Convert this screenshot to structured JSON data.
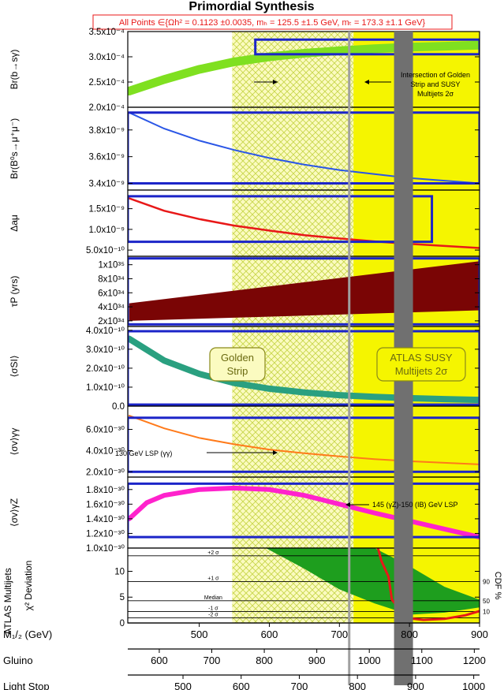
{
  "title": "Primordial Synthesis",
  "constraint_text": "All Points ∈{Ωh² = 0.1123 ±0.0035, mₕ = 125.5 ±1.5 GeV, mₜ = 173.3 ±1.1 GeV}",
  "colors": {
    "yellow": "#f5f500",
    "hatch": "#c8d64a",
    "box": "#1b24c8",
    "grid": "#000000",
    "band_gray": "#707070",
    "line_gray": "#a0a0a0"
  },
  "regions": {
    "golden_strip": {
      "label_line1": "Golden",
      "label_line2": "Strip",
      "m12_range": [
        547,
        720
      ]
    },
    "atlas": {
      "label_line1": "ATLAS SUSY",
      "label_line2": "Multijets 2σ",
      "m12_min": 720
    },
    "gray_band_m12": [
      778,
      805
    ],
    "gray_line_m12": 714
  },
  "annotations": {
    "intersection": [
      "Intersection of Golden",
      "Strip and SUSY",
      "Multijets 2σ"
    ],
    "lsp130": "130 GeV LSP (γγ)",
    "lsp145": "145 (γZ)-150 (IB) GeV LSP"
  },
  "chart_data": [
    {
      "type": "line",
      "ylabel": "Br(b→sγ)",
      "ticks": [
        {
          "v": 2.0,
          "label": "2.0x10⁻⁴"
        },
        {
          "v": 2.5,
          "label": "2.5x10⁻⁴"
        },
        {
          "v": 3.0,
          "label": "3.0x10⁻⁴"
        },
        {
          "v": 3.5,
          "label": "3.5x10⁻⁴"
        }
      ],
      "ylim": [
        2.0,
        3.5
      ],
      "scale": "1e-4",
      "x": [
        400,
        450,
        500,
        550,
        600,
        650,
        700,
        750,
        800,
        850,
        900
      ],
      "y": [
        2.32,
        2.55,
        2.75,
        2.9,
        3.0,
        3.07,
        3.12,
        3.16,
        3.19,
        3.21,
        3.23
      ],
      "line_width": 11,
      "color": "#7fe020",
      "box": {
        "x": [
          580,
          900
        ],
        "y": [
          3.05,
          3.34
        ]
      }
    },
    {
      "type": "line",
      "ylabel": "Br(B⁰s→μ⁺μ⁻)",
      "ticks": [
        {
          "v": 3.4,
          "label": "3.4x10⁻⁹"
        },
        {
          "v": 3.6,
          "label": "3.6x10⁻⁹"
        },
        {
          "v": 3.8,
          "label": "3.8x10⁻⁹"
        }
      ],
      "ylim": [
        3.35,
        3.97
      ],
      "scale": "1e-9",
      "x": [
        400,
        450,
        500,
        550,
        600,
        650,
        700,
        750,
        800,
        850,
        900
      ],
      "y": [
        3.93,
        3.81,
        3.72,
        3.65,
        3.59,
        3.54,
        3.5,
        3.47,
        3.44,
        3.42,
        3.4
      ],
      "line_width": 2,
      "color": "#2a56e6",
      "box": {
        "x": [
          398,
          900
        ],
        "y": [
          3.4,
          3.93
        ]
      }
    },
    {
      "type": "line",
      "ylabel": "Δaμ",
      "ticks": [
        {
          "v": 0.5,
          "label": "5.0x10⁻¹⁰"
        },
        {
          "v": 1.0,
          "label": "1.0x10⁻⁹"
        },
        {
          "v": 1.5,
          "label": "1.5x10⁻⁹"
        }
      ],
      "ylim": [
        0.35,
        1.95
      ],
      "scale": "1e-9",
      "x": [
        400,
        450,
        500,
        550,
        600,
        650,
        700,
        750,
        800,
        850,
        900
      ],
      "y": [
        1.75,
        1.45,
        1.25,
        1.09,
        0.97,
        0.86,
        0.78,
        0.71,
        0.65,
        0.6,
        0.55
      ],
      "line_width": 2.5,
      "color": "#e81818",
      "box": {
        "x": [
          398,
          832
        ],
        "y": [
          0.7,
          1.8
        ]
      }
    },
    {
      "type": "area",
      "ylabel": "τP (yrs)",
      "ticks": [
        {
          "v": 2,
          "label": "2x10³⁴"
        },
        {
          "v": 4,
          "label": "4x10³⁴"
        },
        {
          "v": 6,
          "label": "6x10³⁴"
        },
        {
          "v": 8,
          "label": "8x10³⁴"
        },
        {
          "v": 10,
          "label": "1x10³⁵"
        }
      ],
      "ylim": [
        1.2,
        11.2
      ],
      "scale": "1e34",
      "x": [
        400,
        900
      ],
      "upper": [
        4.5,
        10.5
      ],
      "lower": [
        2.0,
        3.5
      ],
      "color": "#7a0505",
      "box": {
        "x": [
          398,
          900
        ],
        "y": [
          1.5,
          10.9
        ]
      }
    },
    {
      "type": "line",
      "ylabel": "⟨σSI⟩",
      "ticks": [
        {
          "v": 0.0,
          "label": "0.0"
        },
        {
          "v": 1.0,
          "label": "1.0x10⁻¹⁰"
        },
        {
          "v": 2.0,
          "label": "2.0x10⁻¹⁰"
        },
        {
          "v": 3.0,
          "label": "3.0x10⁻¹⁰"
        },
        {
          "v": 4.0,
          "label": "4.0x10⁻¹⁰"
        }
      ],
      "ylim": [
        0,
        4.2
      ],
      "scale": "1e-10",
      "x": [
        400,
        450,
        500,
        550,
        600,
        650,
        700,
        750,
        800,
        850,
        900
      ],
      "y": [
        3.55,
        2.4,
        1.7,
        1.22,
        0.92,
        0.72,
        0.58,
        0.49,
        0.42,
        0.37,
        0.33
      ],
      "line_width": 8,
      "color": "#2aa080",
      "box": {
        "x": [
          398,
          900
        ],
        "y": [
          0.08,
          3.95
        ]
      }
    },
    {
      "type": "line",
      "ylabel": "⟨σv⟩γγ",
      "ticks": [
        {
          "v": 2,
          "label": "2.0x10⁻³⁰"
        },
        {
          "v": 4,
          "label": "4.0x10⁻³⁰"
        },
        {
          "v": 6,
          "label": "6.0x10⁻³⁰"
        }
      ],
      "ylim": [
        1.5,
        8.2
      ],
      "scale": "1e-30",
      "x": [
        400,
        450,
        500,
        550,
        600,
        650,
        700,
        750,
        800,
        850,
        900
      ],
      "y": [
        7.3,
        6.1,
        5.2,
        4.6,
        4.1,
        3.75,
        3.45,
        3.2,
        3.0,
        2.85,
        2.7
      ],
      "line_width": 2,
      "color": "#ff7a1a",
      "box": {
        "x": [
          398,
          900
        ],
        "y": [
          2.0,
          7.1
        ]
      }
    },
    {
      "type": "line",
      "ylabel": "⟨σv⟩γZ",
      "ticks": [
        {
          "v": 1.0,
          "label": "1.0x10⁻³⁰"
        },
        {
          "v": 1.2,
          "label": "1.2x10⁻³⁰"
        },
        {
          "v": 1.4,
          "label": "1.4x10⁻³⁰"
        },
        {
          "v": 1.6,
          "label": "1.6x10⁻³⁰"
        },
        {
          "v": 1.8,
          "label": "1.8x10⁻³⁰"
        }
      ],
      "ylim": [
        1.0,
        1.97
      ],
      "scale": "1e-30",
      "x": [
        400,
        425,
        450,
        500,
        550,
        600,
        650,
        700,
        750,
        800,
        850,
        900
      ],
      "y": [
        1.4,
        1.62,
        1.72,
        1.8,
        1.82,
        1.8,
        1.72,
        1.6,
        1.48,
        1.37,
        1.26,
        1.15
      ],
      "line_width": 6,
      "color": "#ff22cc",
      "box": {
        "x": [
          398,
          900
        ],
        "y": [
          1.15,
          1.88
        ]
      }
    },
    {
      "type": "area",
      "ylabel": "χ² Deviation",
      "ylabel2": "CDF %",
      "side_label": "ATLAS Multijets",
      "ticks": [
        {
          "v": 0,
          "label": "0"
        },
        {
          "v": 5,
          "label": "5"
        },
        {
          "v": 10,
          "label": "10"
        }
      ],
      "ylim": [
        0,
        14.5
      ],
      "sigma_lines": [
        {
          "v": 13.0,
          "label": "+2 σ"
        },
        {
          "v": 8.0,
          "label": "+1 σ"
        },
        {
          "v": 4.3,
          "label": "Median"
        },
        {
          "v": 2.2,
          "label": "-1 σ"
        },
        {
          "v": 1.0,
          "label": "-2 σ"
        }
      ],
      "cdf_ticks": [
        {
          "v": 8.0,
          "label": "90"
        },
        {
          "v": 4.3,
          "label": "50"
        },
        {
          "v": 2.2,
          "label": "10"
        }
      ],
      "band_x_upper": [
        650,
        700,
        750,
        800,
        850,
        900
      ],
      "band_upper": [
        14.5,
        14.5,
        14.5,
        11.0,
        7.0,
        4.5
      ],
      "band_x_lower": [
        595,
        650,
        700,
        750,
        800,
        850,
        900
      ],
      "band_lower": [
        14.5,
        10.5,
        6.5,
        3.8,
        1.6,
        2.0,
        3.0
      ],
      "band_color": "#1e9e1e",
      "curve_x": [
        755,
        760,
        770,
        775,
        790,
        800,
        820,
        850,
        880,
        900
      ],
      "curve_y": [
        14.5,
        12.0,
        9.0,
        4.5,
        2.0,
        0.9,
        0.6,
        0.8,
        1.5,
        2.3
      ],
      "curve_color": "#e81818"
    }
  ],
  "x_axes": [
    {
      "name": "m12",
      "label": "M₁/₂ (GeV)",
      "ticks": [
        500,
        600,
        700,
        800,
        900
      ],
      "range": [
        398,
        900
      ]
    },
    {
      "name": "gluino",
      "label": "Gluino",
      "ticks": [
        600,
        700,
        800,
        900,
        1000,
        1100,
        1200
      ],
      "range": [
        540,
        1210
      ]
    },
    {
      "name": "lightstop",
      "label": "Light Stop",
      "ticks": [
        500,
        600,
        700,
        800,
        900,
        1000
      ],
      "range": [
        405,
        1010
      ]
    }
  ]
}
